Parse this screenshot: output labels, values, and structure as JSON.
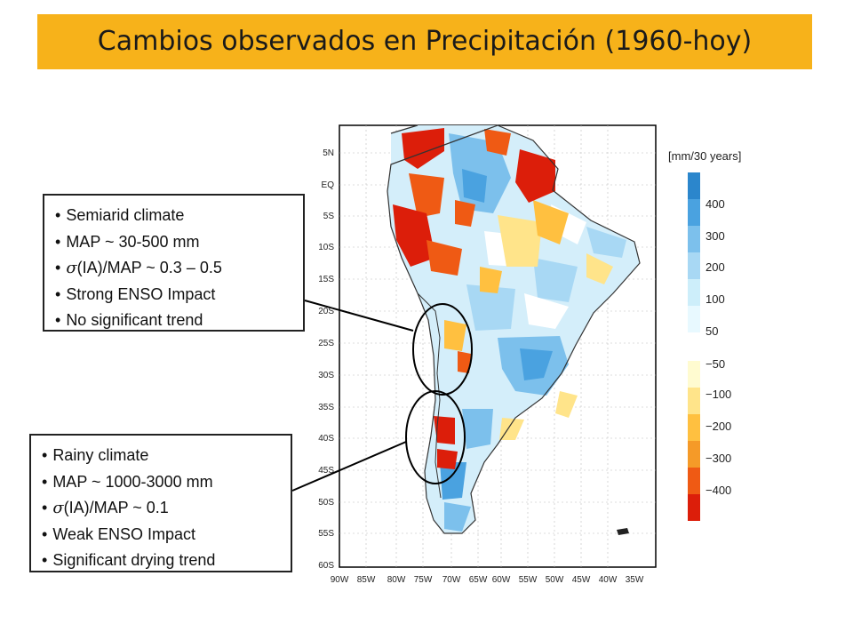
{
  "title": "Cambios observados en Precipitación (1960-hoy)",
  "boxes": {
    "semiarid": {
      "items": [
        "Semiarid climate",
        "MAP ~ 30-500 mm",
        "(IA)/MAP ~ 0.3 – 0.5",
        "Strong ENSO Impact",
        "No significant trend"
      ],
      "sigma": "σ"
    },
    "rainy": {
      "items": [
        "Rainy climate",
        "MAP ~ 1000-3000 mm",
        "(IA)/MAP ~ 0.1",
        "Weak ENSO Impact",
        "Significant drying trend"
      ],
      "sigma": "σ"
    }
  },
  "map": {
    "lat_labels": [
      "5N",
      "EQ",
      "5S",
      "10S",
      "15S",
      "20S",
      "25S",
      "30S",
      "35S",
      "40S",
      "45S",
      "50S",
      "55S",
      "60S"
    ],
    "lon_labels": [
      "90W",
      "85W",
      "80W",
      "75W",
      "70W",
      "65W",
      "60W",
      "55W",
      "50W",
      "45W",
      "40W",
      "35W"
    ]
  },
  "legend": {
    "unit": "[mm/30 years]",
    "positive_labels": [
      "400",
      "300",
      "200",
      "100",
      "50"
    ],
    "negative_labels": [
      "−50",
      "−100",
      "−200",
      "−300",
      "−400"
    ],
    "positive_colors": [
      "#2b86cc",
      "#4aa2e0",
      "#7cc0ec",
      "#a8d8f4",
      "#cdeefa",
      "#e8f9ff"
    ],
    "negative_colors": [
      "#fffbd0",
      "#ffe48a",
      "#ffc040",
      "#f59a28",
      "#ef5a14",
      "#dc1e0a"
    ]
  }
}
